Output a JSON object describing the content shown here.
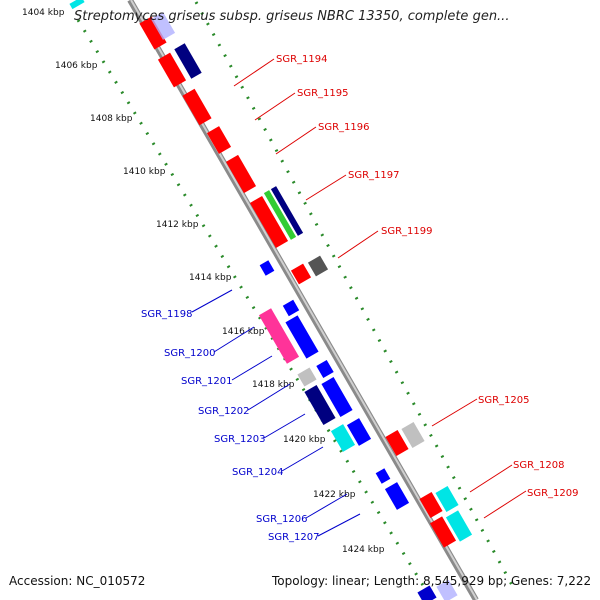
{
  "title": "Streptomyces griseus subsp. griseus NBRC 13350, complete gen...",
  "footer": {
    "accession": "Accession: NC_010572",
    "summary": "Topology: linear; Length: 8,545,929 bp; Genes: 7,222"
  },
  "ticks": [
    "1404 kbp",
    "1406 kbp",
    "1408 kbp",
    "1410 kbp",
    "1412 kbp",
    "1414 kbp",
    "1416 kbp",
    "1418 kbp",
    "1420 kbp",
    "1422 kbp",
    "1424 kbp"
  ],
  "genes_top": [
    "SGR_1194",
    "SGR_1195",
    "SGR_1196",
    "SGR_1197",
    "SGR_1199",
    "SGR_1205",
    "SGR_1208",
    "SGR_1209"
  ],
  "genes_bottom": [
    "SGR_1198",
    "SGR_1200",
    "SGR_1201",
    "SGR_1202",
    "SGR_1203",
    "SGR_1204",
    "SGR_1206",
    "SGR_1207"
  ],
  "colors": {
    "axis": "#9a9a9a",
    "tick_dots": "#2a8a2a",
    "top_label": "#dd0000",
    "bottom_label": "#0000cc"
  }
}
